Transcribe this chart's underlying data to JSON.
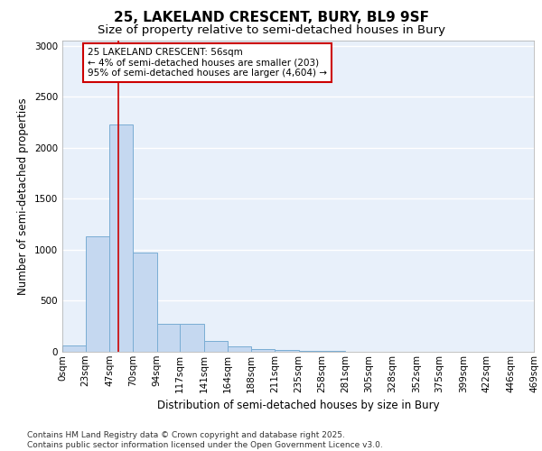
{
  "title_line1": "25, LAKELAND CRESCENT, BURY, BL9 9SF",
  "title_line2": "Size of property relative to semi-detached houses in Bury",
  "xlabel": "Distribution of semi-detached houses by size in Bury",
  "ylabel": "Number of semi-detached properties",
  "annotation_title": "25 LAKELAND CRESCENT: 56sqm",
  "annotation_line2": "← 4% of semi-detached houses are smaller (203)",
  "annotation_line3": "95% of semi-detached houses are larger (4,604) →",
  "footer_line1": "Contains HM Land Registry data © Crown copyright and database right 2025.",
  "footer_line2": "Contains public sector information licensed under the Open Government Licence v3.0.",
  "bin_edges": [
    0,
    23,
    47,
    70,
    94,
    117,
    141,
    164,
    188,
    211,
    235,
    258,
    281,
    305,
    328,
    352,
    375,
    399,
    422,
    446,
    469
  ],
  "bin_labels": [
    "0sqm",
    "23sqm",
    "47sqm",
    "70sqm",
    "94sqm",
    "117sqm",
    "141sqm",
    "164sqm",
    "188sqm",
    "211sqm",
    "235sqm",
    "258sqm",
    "281sqm",
    "305sqm",
    "328sqm",
    "352sqm",
    "375sqm",
    "399sqm",
    "422sqm",
    "446sqm",
    "469sqm"
  ],
  "bar_heights": [
    65,
    1130,
    2230,
    970,
    270,
    270,
    110,
    55,
    30,
    20,
    5,
    5,
    0,
    0,
    0,
    0,
    0,
    0,
    0,
    0
  ],
  "bar_color": "#c5d8f0",
  "bar_edge_color": "#7aadd4",
  "vertical_line_x": 56,
  "vertical_line_color": "#cc0000",
  "ylim": [
    0,
    3050
  ],
  "yticks": [
    0,
    500,
    1000,
    1500,
    2000,
    2500,
    3000
  ],
  "background_color": "#e8f0fa",
  "grid_color": "#ffffff",
  "title_fontsize": 11,
  "subtitle_fontsize": 9.5,
  "axis_label_fontsize": 8.5,
  "tick_fontsize": 7.5,
  "annotation_fontsize": 7.5,
  "footer_fontsize": 6.5
}
